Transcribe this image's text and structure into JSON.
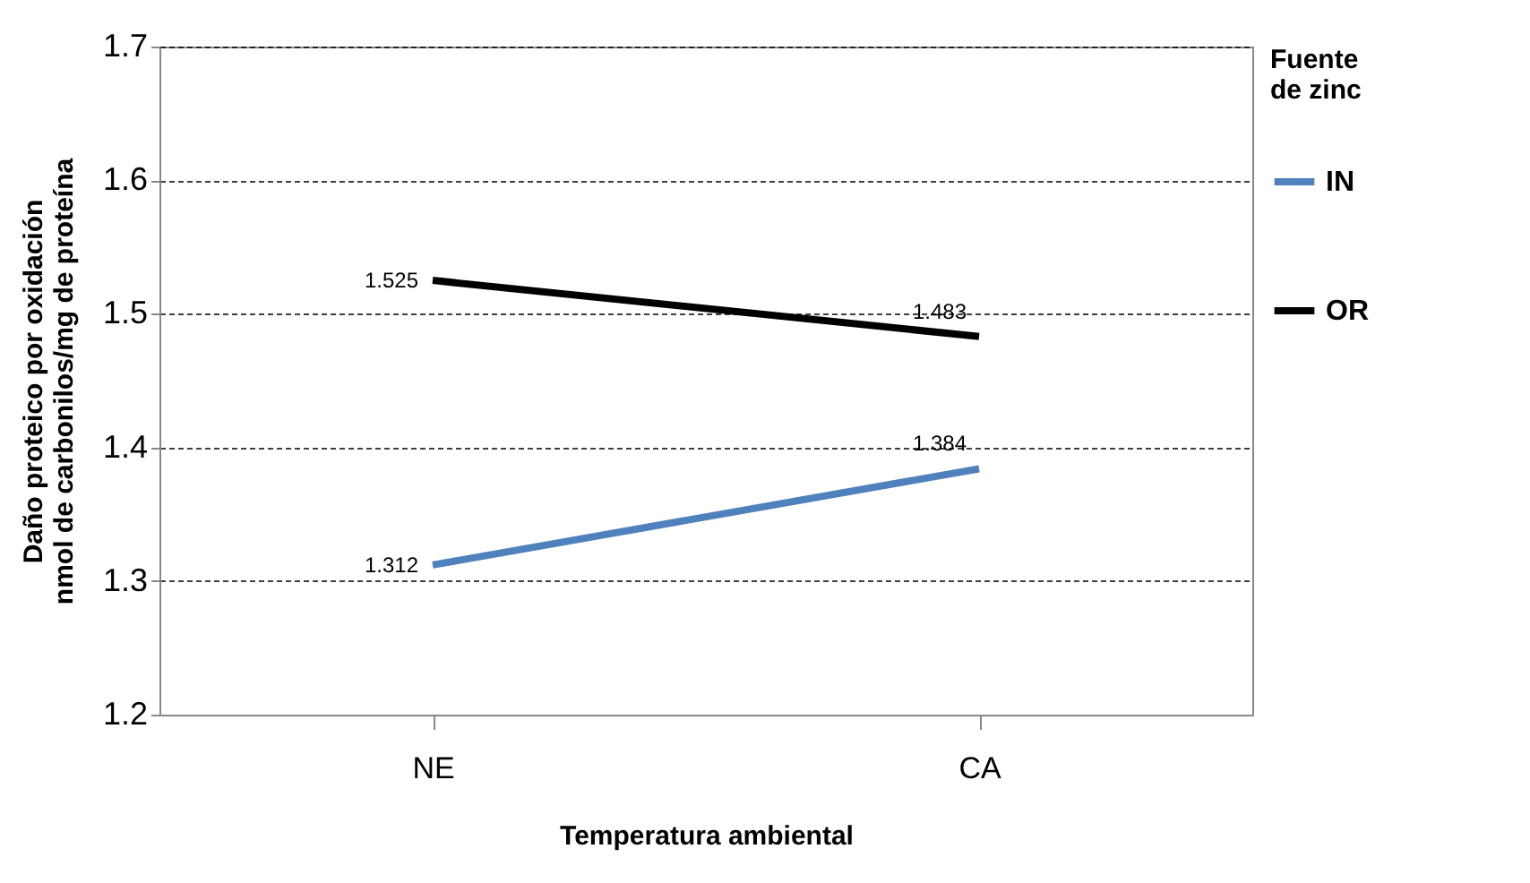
{
  "chart_data": {
    "type": "line",
    "xlabel": "Temperatura  ambiental",
    "ylabel": "Daño proteico por oxidación\nnmol de carbonilos/mg de proteína",
    "legend_title": "Fuente\nde zinc",
    "categories": [
      "NE",
      "CA"
    ],
    "series": [
      {
        "name": "IN",
        "color": "#4f81bd",
        "values": [
          1.312,
          1.384
        ]
      },
      {
        "name": "OR",
        "color": "#000000",
        "values": [
          1.525,
          1.483
        ]
      }
    ],
    "ylim": [
      1.2,
      1.7
    ],
    "yticks": [
      1.2,
      1.3,
      1.4,
      1.5,
      1.6,
      1.7
    ],
    "grid": "y",
    "legend": "right",
    "data_labels": true,
    "marker": "none",
    "line_style": "solid"
  }
}
